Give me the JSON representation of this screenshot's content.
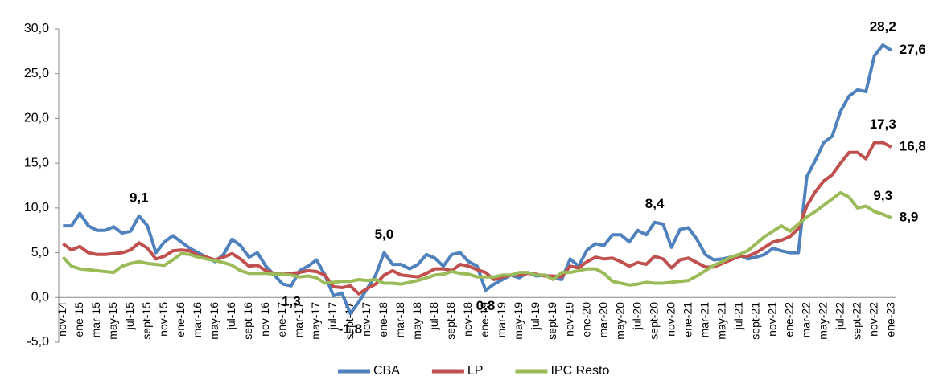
{
  "chart_data": {
    "type": "line",
    "categories": [
      "nov-14",
      null,
      "ene-15",
      null,
      "mar-15",
      null,
      "may-15",
      null,
      "jul-15",
      null,
      "sept-15",
      null,
      "nov-15",
      null,
      "ene-16",
      null,
      "mar-16",
      null,
      "may-16",
      null,
      "jul-16",
      null,
      "sept-16",
      null,
      "nov-16",
      null,
      "ene-17",
      null,
      "mar-17",
      null,
      "may-17",
      null,
      "jul-17",
      null,
      "sept-17",
      null,
      "nov-17",
      null,
      "ene-18",
      null,
      "mar-18",
      null,
      "may-18",
      null,
      "jul-18",
      null,
      "sept-18",
      null,
      "nov-18",
      null,
      "ene-19",
      null,
      "mar-19",
      null,
      "may-19",
      null,
      "jul-19",
      null,
      "sept-19",
      null,
      "nov-19",
      null,
      "ene-20",
      null,
      "mar-20",
      null,
      "may-20",
      null,
      "jul-20",
      null,
      "sept-20",
      null,
      "nov-20",
      null,
      "ene-21",
      null,
      "mar-21",
      null,
      "may-21",
      null,
      "jul-21",
      null,
      "sept-21",
      null,
      "nov-21",
      null,
      "ene-22",
      null,
      "mar-22",
      null,
      "may-22",
      null,
      "jul-22",
      null,
      "sept-22",
      null,
      "nov-22",
      null,
      "ene-23"
    ],
    "series": [
      {
        "name": "CBA",
        "color": "#4f81bd",
        "values": [
          8.0,
          8.0,
          9.4,
          8.0,
          7.5,
          7.5,
          7.9,
          7.2,
          7.4,
          9.1,
          8.0,
          5.0,
          6.2,
          6.9,
          6.2,
          5.5,
          5.0,
          4.5,
          4.0,
          4.8,
          6.5,
          5.8,
          4.5,
          5.0,
          3.5,
          2.5,
          1.5,
          1.3,
          3.0,
          3.5,
          4.2,
          2.5,
          0.2,
          0.5,
          -1.8,
          -0.5,
          1.0,
          2.5,
          5.0,
          3.7,
          3.7,
          3.2,
          3.7,
          4.8,
          4.4,
          3.5,
          4.8,
          5.0,
          4.0,
          3.5,
          0.8,
          1.5,
          2.0,
          2.5,
          2.2,
          2.8,
          2.4,
          2.5,
          2.2,
          2.0,
          4.3,
          3.5,
          5.3,
          6.0,
          5.8,
          7.0,
          7.0,
          6.2,
          7.5,
          7.0,
          8.4,
          8.2,
          5.6,
          7.6,
          7.8,
          6.5,
          4.8,
          4.2,
          4.3,
          4.5,
          4.8,
          4.3,
          4.5,
          4.8,
          5.5,
          5.2,
          5.0,
          5.0,
          13.5,
          15.3,
          17.3,
          18.0,
          20.8,
          22.5,
          23.2,
          23.0,
          27.0,
          28.2,
          27.6
        ],
        "value_labels": [
          null,
          null,
          null,
          null,
          null,
          null,
          null,
          null,
          null,
          "9,1",
          null,
          null,
          null,
          null,
          null,
          null,
          null,
          null,
          null,
          null,
          null,
          null,
          null,
          null,
          null,
          null,
          null,
          "1,3",
          null,
          null,
          null,
          null,
          null,
          null,
          "-1,8",
          null,
          null,
          null,
          "5,0",
          null,
          null,
          null,
          null,
          null,
          null,
          null,
          null,
          null,
          null,
          null,
          "0,8",
          null,
          null,
          null,
          null,
          null,
          null,
          null,
          null,
          null,
          null,
          null,
          null,
          null,
          null,
          null,
          null,
          null,
          null,
          null,
          "8,4",
          null,
          null,
          null,
          null,
          null,
          null,
          null,
          null,
          null,
          null,
          null,
          null,
          null,
          null,
          null,
          null,
          null,
          null,
          null,
          null,
          null,
          null,
          null,
          null,
          null,
          null,
          "28,2",
          "27,6"
        ]
      },
      {
        "name": "LP",
        "color": "#c0504d",
        "values": [
          6.0,
          5.3,
          5.7,
          5.0,
          4.8,
          4.8,
          4.9,
          5.0,
          5.3,
          6.1,
          5.5,
          4.3,
          4.6,
          5.2,
          5.3,
          5.2,
          4.7,
          4.5,
          4.2,
          4.5,
          4.9,
          4.3,
          3.5,
          3.6,
          3.0,
          2.7,
          2.6,
          2.7,
          2.8,
          3.0,
          2.9,
          2.5,
          1.2,
          1.1,
          1.3,
          0.4,
          1.0,
          1.5,
          2.5,
          3.0,
          2.5,
          2.4,
          2.3,
          2.7,
          3.2,
          3.2,
          3.0,
          3.7,
          3.5,
          3.1,
          2.8,
          2.0,
          2.3,
          2.5,
          2.5,
          2.7,
          2.6,
          2.4,
          2.4,
          2.3,
          3.5,
          3.3,
          4.0,
          4.5,
          4.3,
          4.4,
          4.0,
          3.5,
          3.9,
          3.7,
          4.6,
          4.3,
          3.3,
          4.2,
          4.4,
          3.9,
          3.4,
          3.4,
          3.8,
          4.2,
          4.6,
          4.6,
          5.0,
          5.6,
          6.2,
          6.4,
          6.8,
          7.7,
          10.2,
          11.8,
          13.0,
          13.7,
          15.0,
          16.2,
          16.2,
          15.5,
          17.3,
          17.3,
          16.8
        ],
        "value_labels": [
          null,
          null,
          null,
          null,
          null,
          null,
          null,
          null,
          null,
          null,
          null,
          null,
          null,
          null,
          null,
          null,
          null,
          null,
          null,
          null,
          null,
          null,
          null,
          null,
          null,
          null,
          null,
          null,
          null,
          null,
          null,
          null,
          null,
          null,
          null,
          null,
          null,
          null,
          null,
          null,
          null,
          null,
          null,
          null,
          null,
          null,
          null,
          null,
          null,
          null,
          null,
          null,
          null,
          null,
          null,
          null,
          null,
          null,
          null,
          null,
          null,
          null,
          null,
          null,
          null,
          null,
          null,
          null,
          null,
          null,
          null,
          null,
          null,
          null,
          null,
          null,
          null,
          null,
          null,
          null,
          null,
          null,
          null,
          null,
          null,
          null,
          null,
          null,
          null,
          null,
          null,
          null,
          null,
          null,
          null,
          null,
          null,
          "17,3",
          "16,8"
        ]
      },
      {
        "name": "IPC Resto",
        "color": "#9bbb59",
        "values": [
          4.5,
          3.5,
          3.2,
          3.1,
          3.0,
          2.9,
          2.8,
          3.5,
          3.8,
          4.0,
          3.8,
          3.7,
          3.6,
          4.2,
          4.9,
          4.8,
          4.5,
          4.3,
          4.1,
          3.9,
          3.6,
          3.0,
          2.7,
          2.7,
          2.7,
          2.6,
          2.6,
          2.5,
          2.3,
          2.4,
          2.2,
          1.6,
          1.7,
          1.8,
          1.8,
          2.0,
          1.9,
          2.0,
          1.6,
          1.6,
          1.5,
          1.7,
          1.9,
          2.2,
          2.5,
          2.6,
          2.9,
          2.7,
          2.6,
          2.3,
          2.3,
          2.3,
          2.5,
          2.5,
          2.8,
          2.8,
          2.5,
          2.5,
          2.0,
          2.8,
          2.8,
          3.0,
          3.2,
          3.2,
          2.7,
          1.8,
          1.6,
          1.4,
          1.5,
          1.7,
          1.6,
          1.6,
          1.7,
          1.8,
          1.9,
          2.4,
          3.0,
          3.6,
          4.0,
          4.5,
          4.8,
          5.2,
          6.0,
          6.8,
          7.4,
          8.0,
          7.4,
          8.2,
          9.0,
          9.6,
          10.3,
          11.0,
          11.7,
          11.2,
          10.0,
          10.2,
          9.6,
          9.3,
          8.9
        ],
        "value_labels": [
          null,
          null,
          null,
          null,
          null,
          null,
          null,
          null,
          null,
          null,
          null,
          null,
          null,
          null,
          null,
          null,
          null,
          null,
          null,
          null,
          null,
          null,
          null,
          null,
          null,
          null,
          null,
          null,
          null,
          null,
          null,
          null,
          null,
          null,
          null,
          null,
          null,
          null,
          null,
          null,
          null,
          null,
          null,
          null,
          null,
          null,
          null,
          null,
          null,
          null,
          null,
          null,
          null,
          null,
          null,
          null,
          null,
          null,
          null,
          null,
          null,
          null,
          null,
          null,
          null,
          null,
          null,
          null,
          null,
          null,
          null,
          null,
          null,
          null,
          null,
          null,
          null,
          null,
          null,
          null,
          null,
          null,
          null,
          null,
          null,
          null,
          null,
          null,
          null,
          null,
          null,
          null,
          null,
          null,
          null,
          null,
          null,
          "9,3",
          "8,9"
        ]
      }
    ],
    "ylim": [
      -5,
      30
    ],
    "yticks": [
      {
        "value": -5,
        "label": "-5,0"
      },
      {
        "value": 0,
        "label": "0,0"
      },
      {
        "value": 5,
        "label": "5,0"
      },
      {
        "value": 10,
        "label": "10,0"
      },
      {
        "value": 15,
        "label": "15,0"
      },
      {
        "value": 20,
        "label": "20,0"
      },
      {
        "value": 25,
        "label": "25,0"
      },
      {
        "value": 30,
        "label": "30,0"
      }
    ],
    "legend": "bottom"
  }
}
